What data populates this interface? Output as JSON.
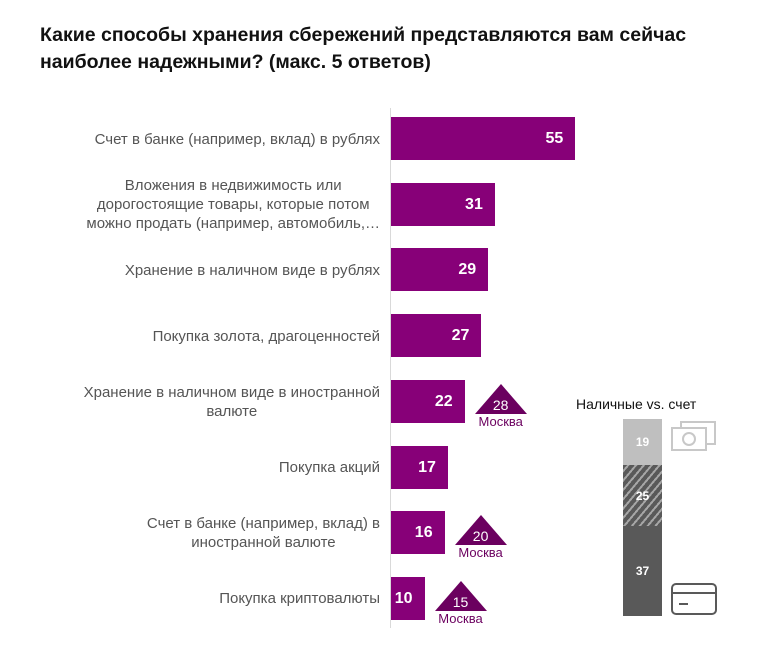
{
  "chart_data": {
    "type": "bar",
    "orientation": "horizontal",
    "title": "Какие способы хранения сбережений представляются вам сейчас наиболее надежными? (макс. 5 ответов)",
    "categories": [
      "Счет в банке (например, вклад) в рублях",
      "Вложения в недвижимость или дорогостоящие товары, которые потом можно продать (например, автомобиль,…",
      "Хранение в наличном виде в рублях",
      "Покупка золота, драгоценностей",
      "Хранение в наличном виде в иностранной валюте",
      "Покупка акций",
      "Счет в банке (например, вклад) в иностранной валюте",
      "Покупка криптовалюты"
    ],
    "category_lines": [
      [
        "Счет в банке (например, вклад) в рублях"
      ],
      [
        "Вложения в недвижимость или",
        "дорогостоящие товары, которые потом",
        "можно продать (например, автомобиль,…"
      ],
      [
        "Хранение в наличном виде в рублях"
      ],
      [
        "Покупка золота, драгоценностей"
      ],
      [
        "Хранение в наличном виде в иностранной",
        "валюте"
      ],
      [
        "Покупка акций"
      ],
      [
        "Счет в банке (например, вклад) в",
        "иностранной валюте"
      ],
      [
        "Покупка криптовалюты"
      ]
    ],
    "values": [
      55,
      31,
      29,
      27,
      22,
      17,
      16,
      10
    ],
    "xlim": [
      0,
      60
    ],
    "bar_color": "#870078",
    "moscow_markers": [
      {
        "index": 4,
        "value": 28,
        "label": "Москва"
      },
      {
        "index": 6,
        "value": 20,
        "label": "Москва"
      },
      {
        "index": 7,
        "value": 15,
        "label": "Москва"
      }
    ],
    "marker_color": "#6b005f",
    "stacked_bar": {
      "title": "Наличные vs. счет",
      "segments": [
        {
          "value": 19,
          "color": "#bfbfbf",
          "pattern": "solid",
          "icon": "cash-icon"
        },
        {
          "value": 25,
          "color": "#595959",
          "pattern": "hatched"
        },
        {
          "value": 37,
          "color": "#595959",
          "pattern": "solid",
          "icon": "card-icon"
        }
      ]
    }
  }
}
